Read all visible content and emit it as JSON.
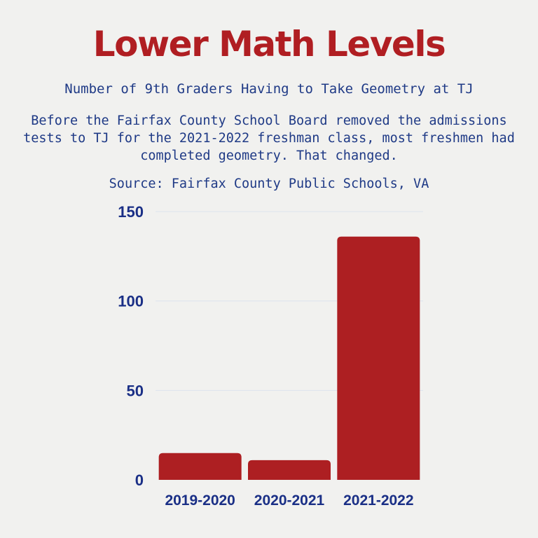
{
  "header": {
    "title": "Lower Math Levels",
    "subtitle": "Number of 9th Graders Having to Take Geometry at TJ",
    "description": "Before the Fairfax County School Board removed the admissions tests to TJ for the 2021-2022 freshman class, most freshmen had completed geometry. That changed.",
    "source": "Source: Fairfax County Public Schools, VA"
  },
  "colors": {
    "bar": "#ad1f22",
    "text": "#1f3a86",
    "title": "#b01e22",
    "gridline": "#dde3ee"
  },
  "chart_data": {
    "type": "bar",
    "title": "Lower Math Levels",
    "subtitle": "Number of 9th Graders Having to Take Geometry at TJ",
    "xlabel": "",
    "ylabel": "",
    "categories": [
      "2019-2020",
      "2020-2021",
      "2021-2022"
    ],
    "values": [
      15,
      11,
      136
    ],
    "ylim": [
      0,
      150
    ],
    "yticks": [
      "0",
      "50",
      "100",
      "150"
    ],
    "grid": true,
    "legend": "none"
  }
}
